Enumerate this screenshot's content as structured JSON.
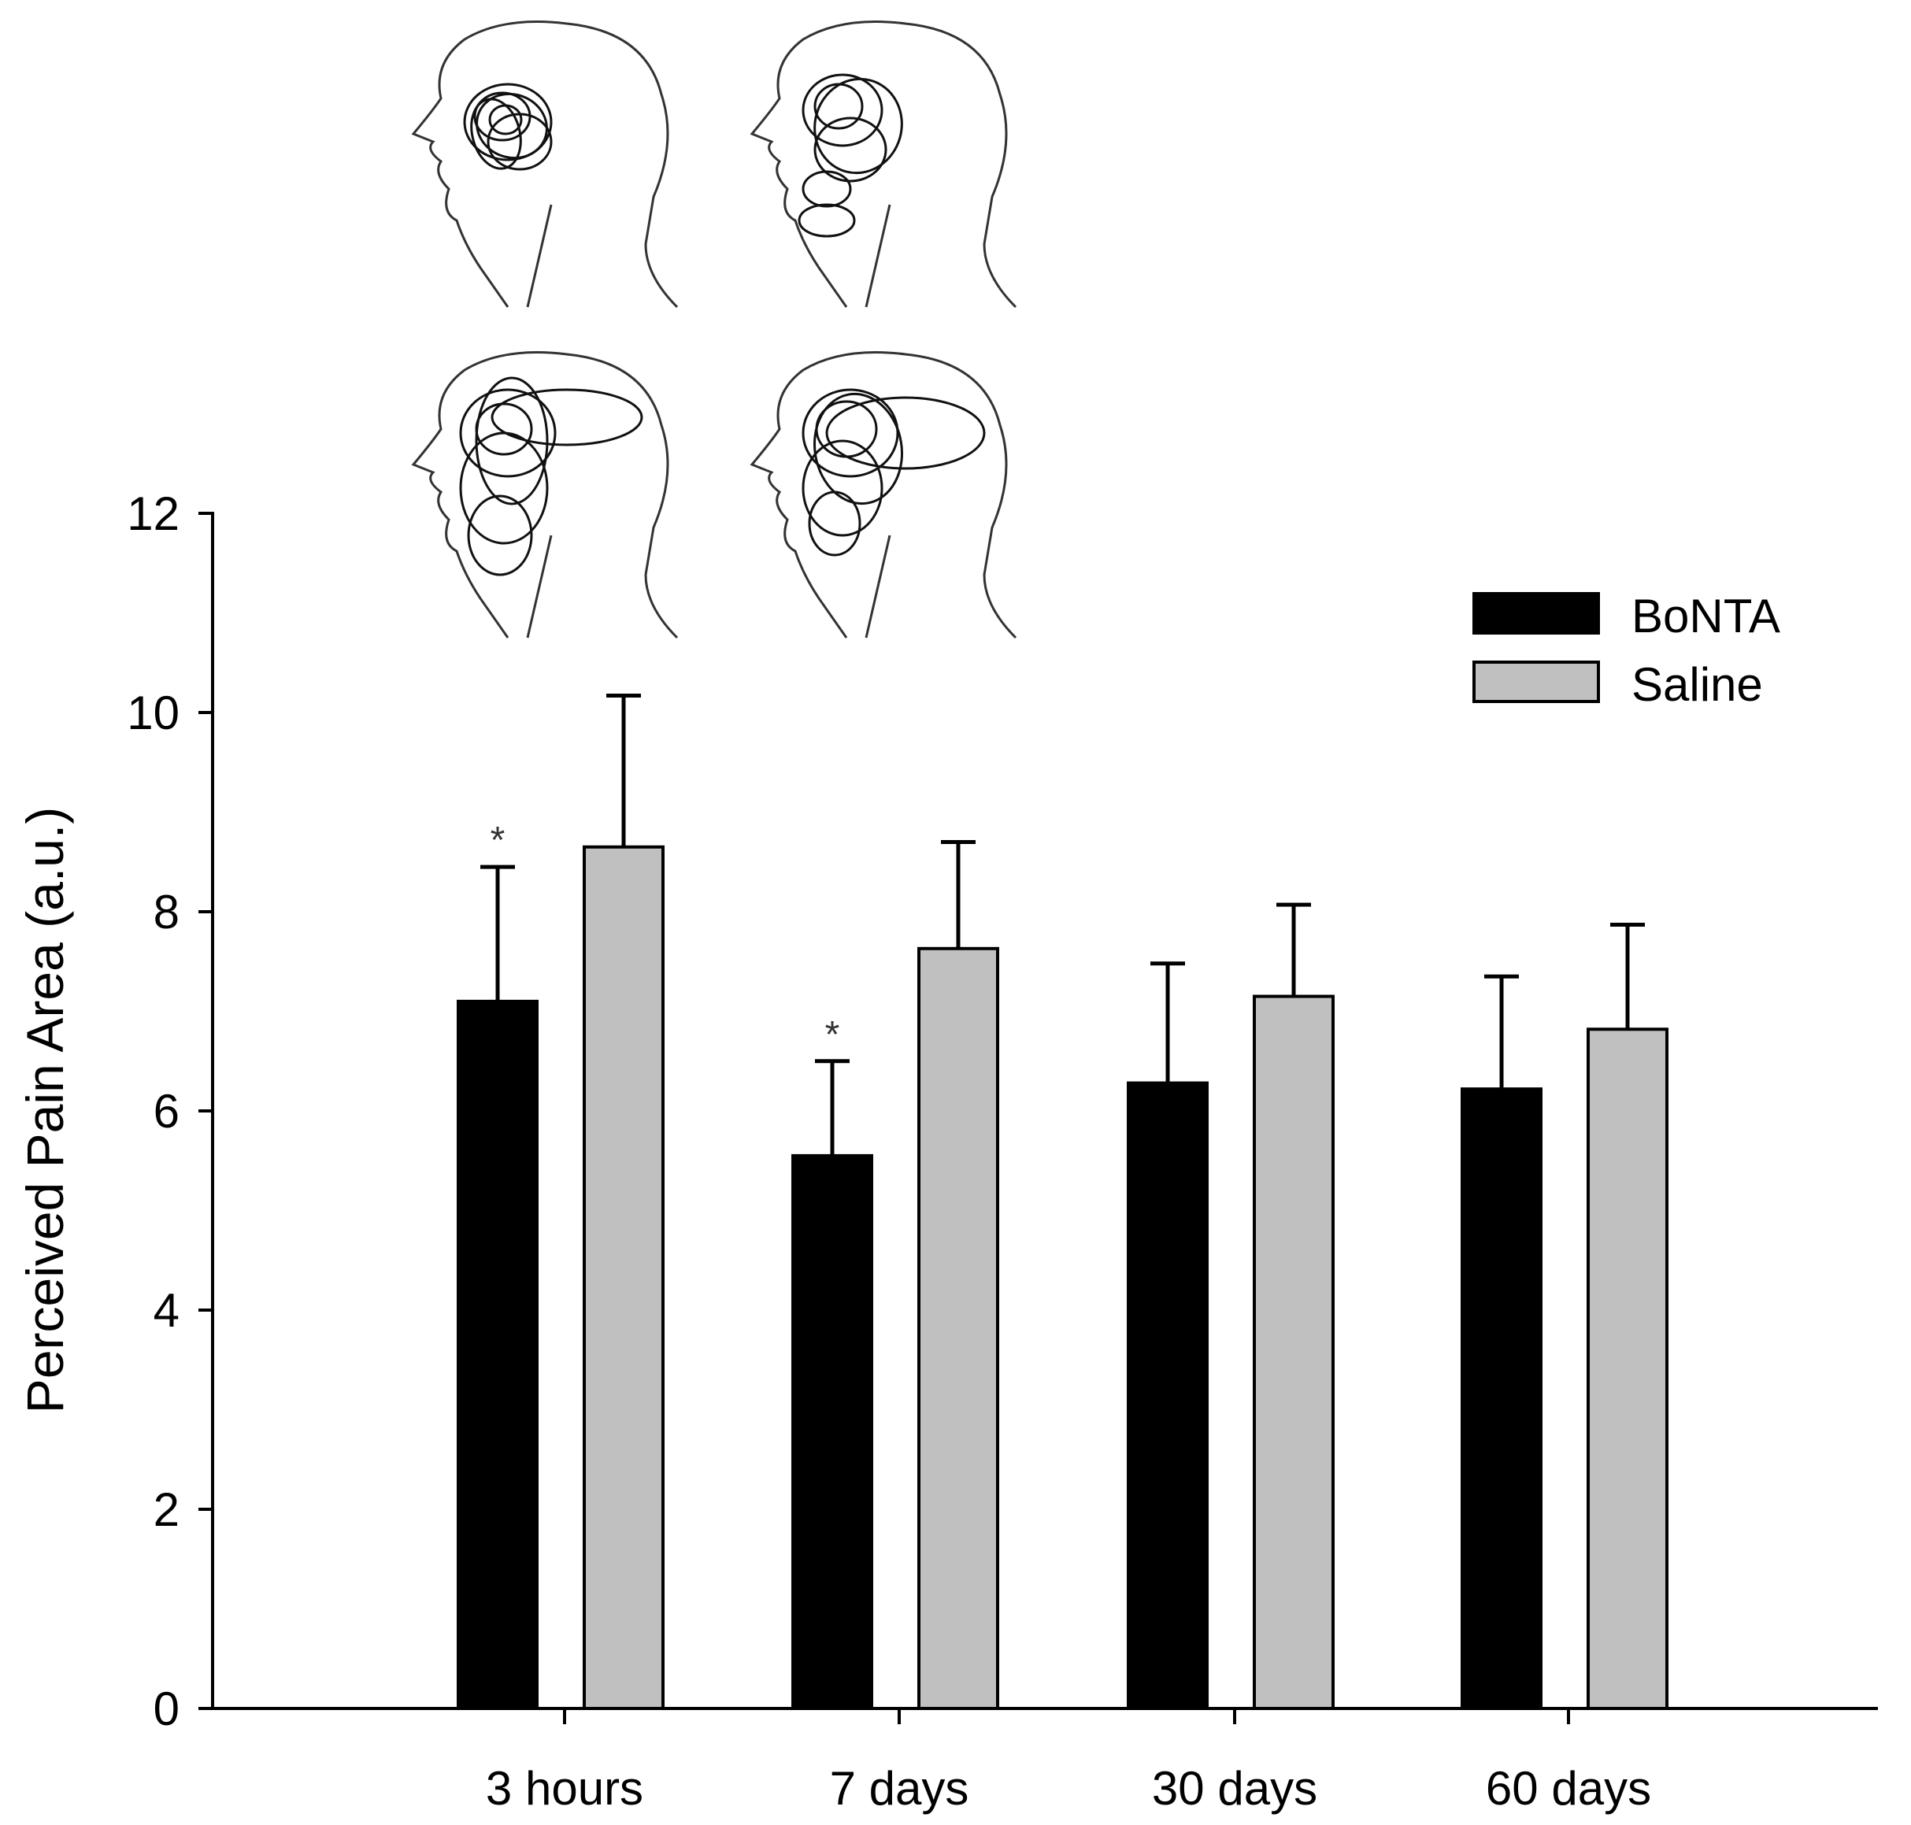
{
  "chart_data": {
    "type": "bar",
    "title": "",
    "xlabel": "",
    "ylabel": "Perceived Pain Area (a.u.)",
    "ylim": [
      0,
      12
    ],
    "yticks": [
      0,
      2,
      4,
      6,
      8,
      10,
      12
    ],
    "categories": [
      "3 hours",
      "7 days",
      "30 days",
      "60 days"
    ],
    "series": [
      {
        "name": "BoNTA",
        "color": "#000000",
        "values": [
          7.1,
          5.55,
          6.28,
          6.22
        ],
        "errors": [
          1.35,
          0.95,
          1.2,
          1.13
        ],
        "significance": [
          "*",
          "*",
          "",
          ""
        ]
      },
      {
        "name": "Saline",
        "color": "#c0c0c0",
        "values": [
          8.65,
          7.63,
          7.15,
          6.82
        ],
        "errors": [
          1.52,
          1.07,
          0.92,
          1.05
        ],
        "significance": [
          "",
          "",
          "",
          ""
        ]
      }
    ],
    "legend": "top-right",
    "inset": "four head line drawings with overlapping pain-area outlines around the temporal region"
  }
}
